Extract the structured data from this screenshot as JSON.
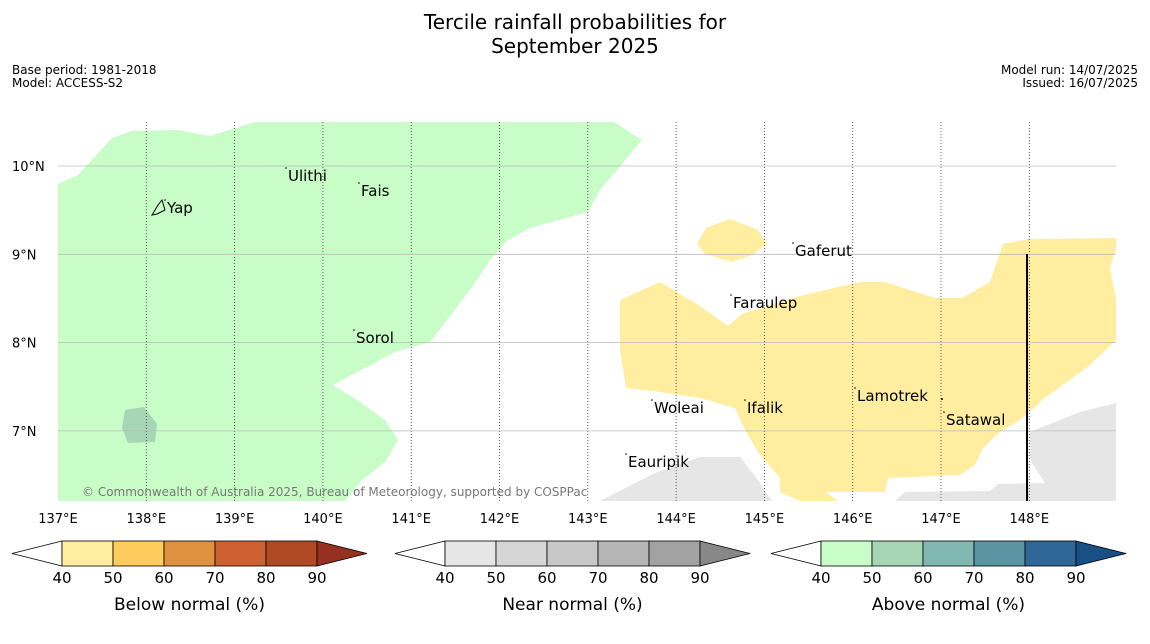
{
  "title_line1": "Tercile rainfall probabilities for",
  "title_line2": "September 2025",
  "meta_left": {
    "base_period": "Base period: 1981-2018",
    "model": "Model: ACCESS-S2"
  },
  "meta_right": {
    "model_run": "Model run: 14/07/2025",
    "issued": "Issued: 16/07/2025"
  },
  "map": {
    "lon_ticks": [
      "137°E",
      "138°E",
      "139°E",
      "140°E",
      "141°E",
      "142°E",
      "143°E",
      "144°E",
      "145°E",
      "146°E",
      "147°E",
      "148°E"
    ],
    "lat_ticks": [
      "10°N",
      "9°N",
      "8°N",
      "7°N"
    ],
    "places": [
      "Ulithi",
      "Fais",
      "Yap",
      "Gaferut",
      "Faraulep",
      "Sorol",
      "Lamotrek",
      "Woleai",
      "Ifalik",
      "Satawal",
      "Eauripik"
    ],
    "copyright": "© Commonwealth of Australia 2025, Bureau of Meteorology, supported by COSPPac"
  },
  "colorbars": [
    {
      "label": "Below normal (%)",
      "ticks": [
        "40",
        "50",
        "60",
        "70",
        "80",
        "90"
      ],
      "colors": [
        "#ffeda0",
        "#fecc5c",
        "#e0913f",
        "#cc6030",
        "#b04a25",
        "#963020"
      ]
    },
    {
      "label": "Near normal (%)",
      "ticks": [
        "40",
        "50",
        "60",
        "70",
        "80",
        "90"
      ],
      "colors": [
        "#e6e6e6",
        "#d6d6d6",
        "#c8c8c8",
        "#b6b6b6",
        "#a2a2a2",
        "#888888"
      ]
    },
    {
      "label": "Above normal (%)",
      "ticks": [
        "40",
        "50",
        "60",
        "70",
        "80",
        "90"
      ],
      "colors": [
        "#c8fdc8",
        "#a6d6b6",
        "#82b8b2",
        "#5b94a2",
        "#2f6798",
        "#184f84"
      ]
    }
  ],
  "colors": {
    "above_40_50": "#c8fdc8",
    "above_50_60": "#a6d6b6",
    "below_40_50": "#ffeda0",
    "near_40_50": "#e6e6e6"
  }
}
